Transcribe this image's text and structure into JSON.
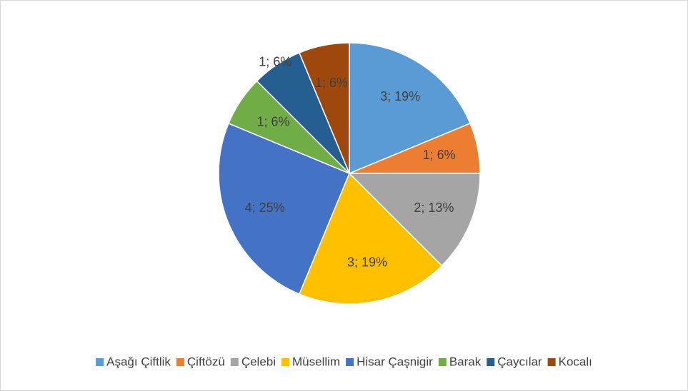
{
  "chart_data": {
    "type": "pie",
    "categories": [
      "Aşağı Çiftlik",
      "Çiftözü",
      "Çelebi",
      "Müsellim",
      "Hisar Çaşnigir",
      "Barak",
      "Çaycılar",
      "Kocalı"
    ],
    "values": [
      3,
      1,
      2,
      3,
      4,
      1,
      1,
      1
    ],
    "value_labels": [
      "3; 19%",
      "1; 6%",
      "2; 13%",
      "3; 19%",
      "4; 25%",
      "1; 6%",
      "1; 6%",
      "1; 6%"
    ],
    "colors": [
      "#5b9bd5",
      "#ed7d31",
      "#a5a5a5",
      "#ffc000",
      "#4472c4",
      "#70ad47",
      "#255e91",
      "#9e480e"
    ],
    "legend": "bottom"
  }
}
